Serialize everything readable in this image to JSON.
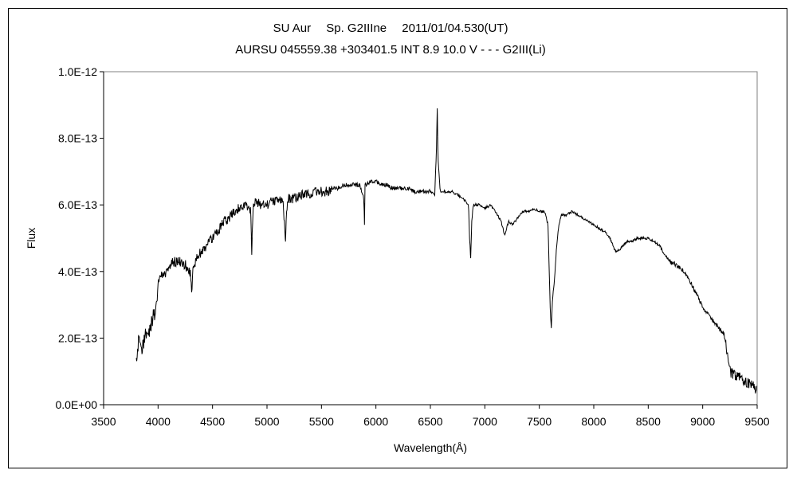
{
  "chart_data": {
    "type": "line",
    "title": "SU Aur　 Sp. G2IIIne　 2011/01/04.530(UT)",
    "subtitle": "AURSU 045559.38 +303401.5 INT 8.9 10.0 V - - - G2III(Li)",
    "xlabel": "Wavelength(Å)",
    "ylabel": "Flux",
    "xlim": [
      3500,
      9500
    ],
    "ylim": [
      0,
      1e-12
    ],
    "x_ticks": [
      "3500",
      "4000",
      "4500",
      "5000",
      "5500",
      "6000",
      "6500",
      "7000",
      "7500",
      "8000",
      "8500",
      "9000",
      "9500"
    ],
    "y_ticks": [
      "0.0E+00",
      "2.0E-13",
      "4.0E-13",
      "6.0E-13",
      "8.0E-13",
      "1.0E-12"
    ],
    "grid": false,
    "line_color": "#000000",
    "series": [
      {
        "x": [
          3800,
          3820,
          3850,
          3880,
          3900,
          3920,
          3950,
          3980,
          4000,
          4020,
          4050,
          4080,
          4100,
          4150,
          4200,
          4250,
          4300,
          4310,
          4320,
          4350,
          4400,
          4450,
          4500,
          4550,
          4600,
          4650,
          4700,
          4750,
          4800,
          4850,
          4860,
          4870,
          4880,
          4900,
          4950,
          5000,
          5050,
          5100,
          5150,
          5170,
          5180,
          5200,
          5250,
          5300,
          5350,
          5400,
          5450,
          5500,
          5550,
          5600,
          5650,
          5700,
          5750,
          5800,
          5850,
          5890,
          5895,
          5900,
          5950,
          6000,
          6050,
          6100,
          6150,
          6200,
          6250,
          6300,
          6350,
          6400,
          6450,
          6500,
          6540,
          6555,
          6563,
          6570,
          6590,
          6650,
          6700,
          6750,
          6800,
          6850,
          6860,
          6870,
          6880,
          6890,
          6900,
          6950,
          7000,
          7050,
          7100,
          7150,
          7180,
          7200,
          7220,
          7250,
          7300,
          7350,
          7400,
          7450,
          7500,
          7550,
          7580,
          7600,
          7610,
          7620,
          7640,
          7660,
          7680,
          7700,
          7750,
          7800,
          7850,
          7900,
          7950,
          8000,
          8050,
          8100,
          8150,
          8200,
          8250,
          8300,
          8350,
          8400,
          8450,
          8500,
          8550,
          8600,
          8650,
          8700,
          8750,
          8800,
          8850,
          8900,
          8950,
          9000,
          9050,
          9100,
          9150,
          9200,
          9250,
          9300,
          9350,
          9400,
          9450,
          9500
        ],
        "y": [
          1.2e-13,
          1.9e-13,
          1.6e-13,
          2e-13,
          2.3e-13,
          2.2e-13,
          2.6e-13,
          2.8e-13,
          3.7e-13,
          3.9e-13,
          3.9e-13,
          4e-13,
          4.2e-13,
          4.3e-13,
          4.3e-13,
          4.2e-13,
          3.9e-13,
          3.4e-13,
          4e-13,
          4.4e-13,
          4.6e-13,
          4.8e-13,
          5e-13,
          5.2e-13,
          5.5e-13,
          5.6e-13,
          5.8e-13,
          5.9e-13,
          6e-13,
          5.8e-13,
          4.5e-13,
          5.8e-13,
          6e-13,
          6.1e-13,
          6e-13,
          6e-13,
          6.1e-13,
          6.2e-13,
          6e-13,
          4.9e-13,
          5.9e-13,
          6.2e-13,
          6.2e-13,
          6.3e-13,
          6.3e-13,
          6.3e-13,
          6.4e-13,
          6.4e-13,
          6.4e-13,
          6.5e-13,
          6.5e-13,
          6.6e-13,
          6.6e-13,
          6.6e-13,
          6.6e-13,
          6.2e-13,
          5.4e-13,
          6.6e-13,
          6.7e-13,
          6.7e-13,
          6.6e-13,
          6.6e-13,
          6.5e-13,
          6.5e-13,
          6.5e-13,
          6.5e-13,
          6.4e-13,
          6.4e-13,
          6.4e-13,
          6.4e-13,
          6.3e-13,
          7.6e-13,
          8.9e-13,
          7.4e-13,
          6.4e-13,
          6.4e-13,
          6.4e-13,
          6.3e-13,
          6.2e-13,
          6e-13,
          5e-13,
          4.4e-13,
          5.5e-13,
          5.9e-13,
          6e-13,
          6e-13,
          5.9e-13,
          6e-13,
          5.8e-13,
          5.5e-13,
          5.1e-13,
          5.3e-13,
          5.5e-13,
          5.4e-13,
          5.6e-13,
          5.8e-13,
          5.8e-13,
          5.9e-13,
          5.8e-13,
          5.8e-13,
          5.4e-13,
          2.9e-13,
          2.3e-13,
          3.1e-13,
          3.8e-13,
          4.8e-13,
          5.4e-13,
          5.7e-13,
          5.7e-13,
          5.8e-13,
          5.7e-13,
          5.6e-13,
          5.5e-13,
          5.4e-13,
          5.3e-13,
          5.2e-13,
          5e-13,
          4.6e-13,
          4.7e-13,
          4.9e-13,
          4.9e-13,
          5e-13,
          5e-13,
          5e-13,
          4.9e-13,
          4.8e-13,
          4.5e-13,
          4.3e-13,
          4.2e-13,
          4.1e-13,
          3.9e-13,
          3.6e-13,
          3.3e-13,
          2.9e-13,
          2.7e-13,
          2.5e-13,
          2.3e-13,
          2.1e-13,
          1e-13,
          9e-14,
          8e-14,
          7e-14,
          6e-14,
          4e-14
        ]
      }
    ]
  }
}
